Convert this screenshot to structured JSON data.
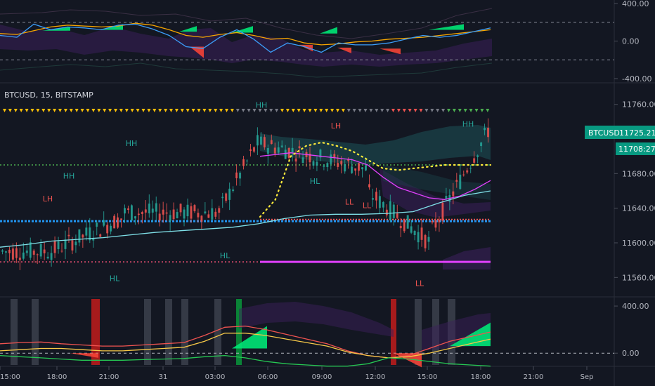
{
  "symbol_header": "BTCUSD, 15, BITSTAMP",
  "price_badge": {
    "symbol": "BTCUSD",
    "price": "11725.21",
    "countdown": "11708:27"
  },
  "chart_data": [
    {
      "type": "line",
      "pane": "top-oscillator",
      "ylim": [
        -400,
        400
      ],
      "y_ticks": [
        "400.00",
        "0.00",
        "-400.00"
      ],
      "guide_lines": [
        200,
        -200
      ],
      "series": [
        {
          "name": "",
          "color": "#f7a600",
          "values": [
            80,
            70,
            110,
            150,
            170,
            160,
            150,
            160,
            190,
            170,
            120,
            60,
            40,
            70,
            90,
            60,
            20,
            30,
            -20,
            -40,
            -30,
            -10,
            0,
            20,
            30,
            40,
            60,
            80,
            100,
            120
          ]
        },
        {
          "name": "",
          "color": "#3b9df8",
          "values": [
            60,
            40,
            180,
            120,
            150,
            140,
            120,
            170,
            180,
            130,
            60,
            -60,
            -80,
            40,
            120,
            20,
            -120,
            -20,
            -60,
            -120,
            -20,
            -40,
            -40,
            -20,
            20,
            60,
            40,
            60,
            100,
            140
          ]
        }
      ]
    },
    {
      "type": "line",
      "pane": "price",
      "ylim": [
        11540,
        11780
      ],
      "y_ticks": [
        "11760.00",
        "11680.00",
        "11640.00",
        "11600.00",
        "11560.00"
      ],
      "reference_levels": [
        11690,
        11625,
        11578
      ],
      "series": [
        {
          "name": "",
          "color": "#7fe0e8",
          "values": [
            11595,
            11598,
            11602,
            11604,
            11606,
            11609,
            11612,
            11614,
            11616,
            11618,
            11622,
            11628,
            11632,
            11633,
            11633,
            11634,
            11636,
            11646,
            11655,
            11660
          ]
        },
        {
          "name": "",
          "color": "#e040fb",
          "values": [
            11700,
            11702,
            11704,
            11702,
            11700,
            11698,
            11696,
            11690,
            11676,
            11664,
            11658,
            11652,
            11650,
            11654,
            11662,
            11672
          ]
        },
        {
          "name": "",
          "color": "#ffeb3b",
          "values": [
            11630,
            11650,
            11700,
            11712,
            11716,
            11712,
            11706,
            11696,
            11686,
            11684,
            11686,
            11688,
            11690,
            11690,
            11690,
            11690
          ]
        }
      ],
      "swing_labels": [
        {
          "text": "LH",
          "value": 11648,
          "color": "#ef5350"
        },
        {
          "text": "HH",
          "value": 11674,
          "color": "#26a69a"
        },
        {
          "text": "HH",
          "value": 11712,
          "color": "#26a69a"
        },
        {
          "text": "HL",
          "value": 11556,
          "color": "#26a69a"
        },
        {
          "text": "HL",
          "value": 11582,
          "color": "#26a69a"
        },
        {
          "text": "HH",
          "value": 11756,
          "color": "#26a69a"
        },
        {
          "text": "LH",
          "value": 11732,
          "color": "#ef5350"
        },
        {
          "text": "HL",
          "value": 11668,
          "color": "#26a69a"
        },
        {
          "text": "LL",
          "value": 11644,
          "color": "#ef5350"
        },
        {
          "text": "LL",
          "value": 11640,
          "color": "#ef5350"
        },
        {
          "text": "LL",
          "value": 11550,
          "color": "#ef5350"
        },
        {
          "text": "HH",
          "value": 11734,
          "color": "#26a69a"
        }
      ]
    },
    {
      "type": "line",
      "pane": "bottom-oscillator",
      "ylim": [
        -100,
        460
      ],
      "y_ticks": [
        "400.00",
        "0.00"
      ],
      "series": [
        {
          "name": "",
          "color": "#ef5350",
          "values": [
            80,
            90,
            95,
            80,
            70,
            60,
            60,
            70,
            80,
            90,
            150,
            220,
            230,
            200,
            160,
            120,
            80,
            20,
            -20,
            -40,
            -20,
            40,
            100,
            140,
            180
          ]
        },
        {
          "name": "",
          "color": "#f7c948",
          "values": [
            20,
            30,
            40,
            40,
            30,
            20,
            20,
            30,
            40,
            50,
            100,
            170,
            170,
            150,
            120,
            90,
            60,
            10,
            -20,
            -40,
            -30,
            0,
            40,
            80,
            120
          ]
        },
        {
          "name": "",
          "color": "#26c853",
          "values": [
            -20,
            -30,
            -40,
            -50,
            -60,
            -60,
            -60,
            -55,
            -50,
            -45,
            -30,
            -20,
            -40,
            -70,
            -90,
            -100,
            -110,
            -110,
            -90,
            -40,
            -50,
            -70,
            -90,
            -100,
            -110
          ]
        }
      ]
    }
  ],
  "x_axis_labels": [
    "15:00",
    "18:00",
    "21:00",
    "31",
    "03:00",
    "06:00",
    "09:00",
    "12:00",
    "15:00",
    "18:00",
    "21:00",
    "Sep"
  ]
}
